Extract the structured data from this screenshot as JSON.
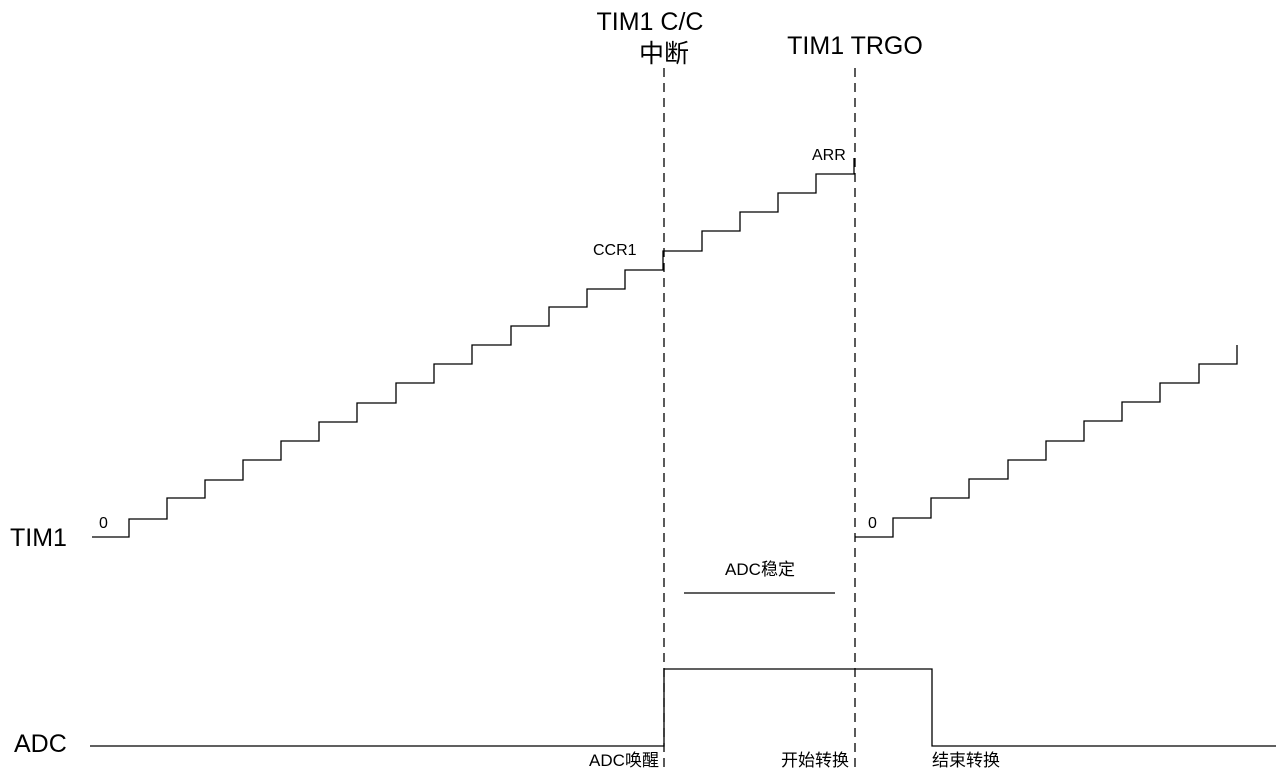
{
  "signals": {
    "tim1": "TIM1",
    "adc": "ADC"
  },
  "markers": {
    "cc_interrupt_line1": "TIM1 C/C",
    "cc_interrupt_line2": "中断",
    "trgo": "TIM1 TRGO"
  },
  "counter_labels": {
    "start_zero": "0",
    "ccr1": "CCR1",
    "arr": "ARR",
    "restart_zero": "0"
  },
  "adc_labels": {
    "stabilize": "ADC稳定",
    "wake": "ADC唤醒",
    "start_conversion": "开始转换",
    "end_conversion": "结束转换"
  },
  "colors": {
    "line": "#000000",
    "background": "#ffffff"
  }
}
